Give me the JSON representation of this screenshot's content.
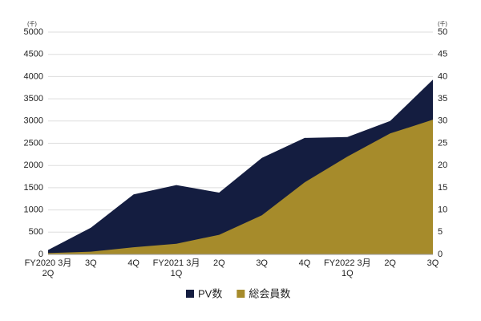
{
  "chart_data": {
    "type": "area",
    "y_unit": "(千)",
    "y2_unit": "(千)",
    "categories": [
      [
        "FY2020 3月",
        "2Q"
      ],
      [
        "3Q"
      ],
      [
        "4Q"
      ],
      [
        "FY2021 3月",
        "1Q"
      ],
      [
        "2Q"
      ],
      [
        "3Q"
      ],
      [
        "4Q"
      ],
      [
        "FY2022 3月",
        "1Q"
      ],
      [
        "2Q"
      ],
      [
        "3Q"
      ]
    ],
    "series": [
      {
        "name": "PV数",
        "color": "#141d40",
        "axis": "y",
        "values": [
          100,
          600,
          1350,
          1560,
          1390,
          2170,
          2620,
          2640,
          3000,
          3930
        ]
      },
      {
        "name": "総会員数",
        "color": "#a68b2b",
        "axis": "y2",
        "values": [
          0.3,
          0.6,
          1.6,
          2.4,
          4.4,
          8.8,
          16.2,
          22,
          27.2,
          30.3
        ]
      }
    ],
    "ylim": [
      0,
      5000
    ],
    "yticks": [
      0,
      500,
      1000,
      1500,
      2000,
      2500,
      3000,
      3500,
      4000,
      4500,
      5000
    ],
    "y2lim": [
      0,
      50
    ],
    "y2ticks": [
      0,
      5,
      10,
      15,
      20,
      25,
      30,
      35,
      40,
      45,
      50
    ],
    "grid": true,
    "legend": "bottom"
  }
}
